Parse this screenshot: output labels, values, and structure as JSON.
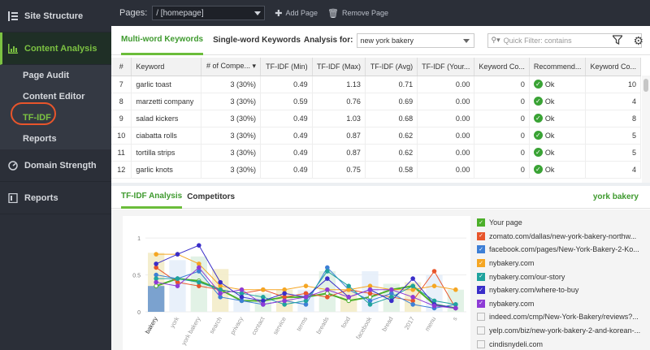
{
  "sidebar": {
    "site_structure": "Site Structure",
    "content_analysis": "Content Analysis",
    "sub_items": [
      "Page Audit",
      "Content Editor",
      "TF-IDF",
      "Reports"
    ],
    "domain_strength": "Domain Strength",
    "reports": "Reports"
  },
  "topbar": {
    "pages_label": "Pages:",
    "pages_value": "/ [homepage]",
    "add_page": "Add Page",
    "remove_page": "Remove Page"
  },
  "toolbar": {
    "tab_multi": "Multi-word Keywords",
    "tab_single": "Single-word Keywords",
    "analysis_label": "Analysis for:",
    "analysis_value": "new york bakery",
    "filter_placeholder": "Quick Filter: contains"
  },
  "table": {
    "headers": [
      "#",
      "Keyword",
      "# of Compe...",
      "TF-IDF (Min)",
      "TF-IDF (Max)",
      "TF-IDF (Avg)",
      "TF-IDF (Your...",
      "Keyword Co...",
      "Recommend...",
      "Keyword Co..."
    ],
    "rows": [
      {
        "n": "7",
        "kw": "garlic toast",
        "comp": "3 (30%)",
        "min": "0.49",
        "max": "1.13",
        "avg": "0.71",
        "your": "0.00",
        "kc": "0",
        "rec": "Ok",
        "kc2": "10"
      },
      {
        "n": "8",
        "kw": "marzetti company",
        "comp": "3 (30%)",
        "min": "0.59",
        "max": "0.76",
        "avg": "0.69",
        "your": "0.00",
        "kc": "0",
        "rec": "Ok",
        "kc2": "4"
      },
      {
        "n": "9",
        "kw": "salad kickers",
        "comp": "3 (30%)",
        "min": "0.49",
        "max": "1.03",
        "avg": "0.68",
        "your": "0.00",
        "kc": "0",
        "rec": "Ok",
        "kc2": "8"
      },
      {
        "n": "10",
        "kw": "ciabatta rolls",
        "comp": "3 (30%)",
        "min": "0.49",
        "max": "0.87",
        "avg": "0.62",
        "your": "0.00",
        "kc": "0",
        "rec": "Ok",
        "kc2": "5"
      },
      {
        "n": "11",
        "kw": "tortilla strips",
        "comp": "3 (30%)",
        "min": "0.49",
        "max": "0.87",
        "avg": "0.62",
        "your": "0.00",
        "kc": "0",
        "rec": "Ok",
        "kc2": "5"
      },
      {
        "n": "12",
        "kw": "garlic knots",
        "comp": "3 (30%)",
        "min": "0.49",
        "max": "0.75",
        "avg": "0.58",
        "your": "0.00",
        "kc": "0",
        "rec": "Ok",
        "kc2": "4"
      }
    ]
  },
  "lower": {
    "tab_tfidf": "TF-IDF Analysis",
    "tab_competitors": "Competitors",
    "keyword_tag": "york bakery"
  },
  "legend": [
    {
      "label": "Your page",
      "color": "#4caf2a",
      "checked": true
    },
    {
      "label": "zomato.com/dallas/new-york-bakery-northw...",
      "color": "#e8552b",
      "checked": true
    },
    {
      "label": "facebook.com/pages/New-York-Bakery-2-Ko...",
      "color": "#3d7fd6",
      "checked": true
    },
    {
      "label": "nybakery.com",
      "color": "#f5a623",
      "checked": true
    },
    {
      "label": "nybakery.com/our-story",
      "color": "#20a39e",
      "checked": true
    },
    {
      "label": "nybakery.com/where-to-buy",
      "color": "#3a2ec9",
      "checked": true
    },
    {
      "label": "nybakery.com",
      "color": "#8e3bd6",
      "checked": true
    },
    {
      "label": "indeed.com/cmp/New-York-Bakery/reviews?...",
      "color": "#ffffff",
      "checked": false
    },
    {
      "label": "yelp.com/biz/new-york-bakery-2-and-korean-...",
      "color": "#ffffff",
      "checked": false
    },
    {
      "label": "cindisnydeli.com",
      "color": "#ffffff",
      "checked": false
    }
  ],
  "chart_data": {
    "type": "line",
    "categories": [
      "bakery",
      "york",
      "york bakery",
      "search",
      "privacy",
      "contact",
      "service",
      "terms",
      "breads",
      "food",
      "facebook",
      "bread",
      "2017",
      "menu",
      "s"
    ],
    "yticks": [
      "1",
      "0.5",
      "0"
    ],
    "ylim": [
      0,
      1.1
    ],
    "bar_background": [
      0.8,
      0.7,
      0.75,
      0.58,
      0.25,
      0.25,
      0.3,
      0.3,
      0.55,
      0.3,
      0.55,
      0.38,
      0.4,
      0.5,
      0.3
    ],
    "series": [
      {
        "color": "#4caf2a",
        "values": [
          0.35,
          0.45,
          0.42,
          0.3,
          0.15,
          0.15,
          0.2,
          0.2,
          0.25,
          0.15,
          0.2,
          0.3,
          0.35,
          0.1,
          0.05
        ]
      },
      {
        "color": "#e8552b",
        "values": [
          0.6,
          0.4,
          0.35,
          0.3,
          0.25,
          0.3,
          0.2,
          0.25,
          0.2,
          0.3,
          0.25,
          0.2,
          0.15,
          0.55,
          0.05
        ]
      },
      {
        "color": "#3d7fd6",
        "values": [
          0.5,
          0.45,
          0.55,
          0.2,
          0.15,
          0.1,
          0.15,
          0.1,
          0.6,
          0.3,
          0.15,
          0.25,
          0.1,
          0.05,
          0.1
        ]
      },
      {
        "color": "#f5a623",
        "values": [
          0.78,
          0.78,
          0.65,
          0.35,
          0.3,
          0.3,
          0.3,
          0.35,
          0.3,
          0.3,
          0.35,
          0.3,
          0.3,
          0.35,
          0.3
        ]
      },
      {
        "color": "#20a39e",
        "values": [
          0.45,
          0.45,
          0.4,
          0.3,
          0.25,
          0.2,
          0.1,
          0.15,
          0.55,
          0.35,
          0.1,
          0.2,
          0.35,
          0.15,
          0.1
        ]
      },
      {
        "color": "#3a2ec9",
        "values": [
          0.65,
          0.78,
          0.9,
          0.4,
          0.2,
          0.15,
          0.25,
          0.2,
          0.45,
          0.2,
          0.3,
          0.15,
          0.45,
          0.1,
          0.05
        ]
      },
      {
        "color": "#8e3bd6",
        "values": [
          0.4,
          0.35,
          0.6,
          0.25,
          0.3,
          0.1,
          0.15,
          0.2,
          0.3,
          0.2,
          0.3,
          0.3,
          0.2,
          0.08,
          0.05
        ]
      }
    ]
  }
}
